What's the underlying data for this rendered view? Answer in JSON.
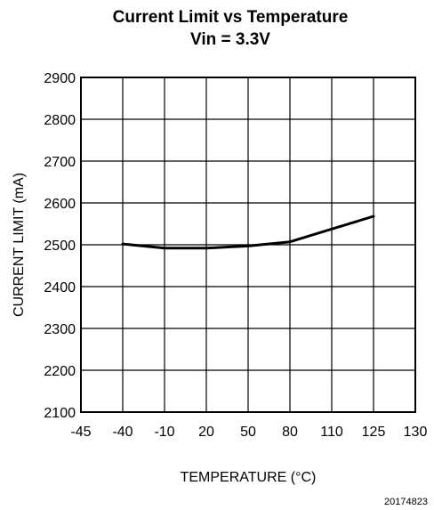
{
  "chart_data": {
    "type": "line",
    "title": "Current Limit vs Temperature",
    "subtitle": "Vin = 3.3V",
    "xlabel": "TEMPERATURE (°C)",
    "ylabel": "CURRENT LIMIT (mA)",
    "x_tick_labels": [
      "-45",
      "-40",
      "-10",
      "20",
      "50",
      "80",
      "110",
      "125",
      "130"
    ],
    "y_ticks": [
      2100,
      2200,
      2300,
      2400,
      2500,
      2600,
      2700,
      2800,
      2900
    ],
    "ylim": [
      2100,
      2900
    ],
    "grid": true,
    "x": [
      "-40",
      "-10",
      "20",
      "50",
      "80",
      "125"
    ],
    "series": [
      {
        "values": [
          2502,
          2492,
          2492,
          2497,
          2507,
          2568
        ]
      }
    ],
    "line_color": "#000000"
  },
  "figure_id": "20174823"
}
